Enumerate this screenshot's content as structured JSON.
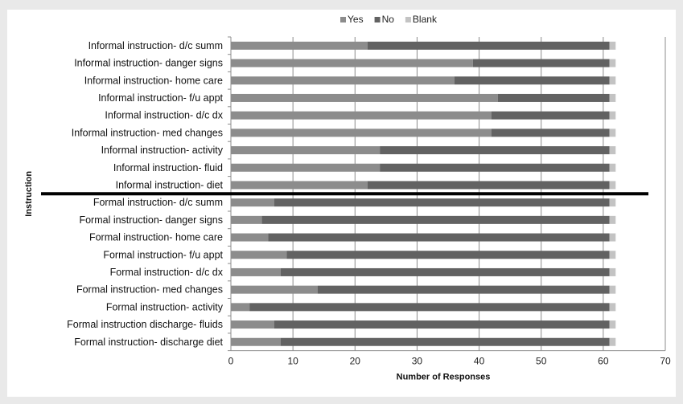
{
  "chart_data": {
    "type": "bar",
    "orientation": "horizontal",
    "stacked": true,
    "categories": [
      "Informal instruction- d/c summ",
      "Informal instruction- danger signs",
      "Informal instruction- home care",
      "Informal instruction- f/u appt",
      "Informal instruction- d/c dx",
      "Informal instruction- med changes",
      "Informal instruction- activity",
      "Informal instruction- fluid",
      "Informal instruction- diet",
      "Formal instruction- d/c summ",
      "Formal instruction- danger signs",
      "Formal instruction- home care",
      "Formal instruction- f/u appt",
      "Formal instruction- d/c dx",
      "Formal instruction- med changes",
      "Formal instruction- activity",
      "Formal instruction discharge- fluids",
      "Formal instruction- discharge diet"
    ],
    "series": [
      {
        "name": "Yes",
        "color": "#8c8c8c",
        "values": [
          22,
          39,
          36,
          43,
          42,
          42,
          24,
          24,
          22,
          7,
          5,
          6,
          9,
          8,
          14,
          3,
          7,
          8
        ]
      },
      {
        "name": "No",
        "color": "#626262",
        "values": [
          39,
          22,
          25,
          18,
          19,
          19,
          37,
          37,
          39,
          54,
          56,
          55,
          52,
          53,
          47,
          58,
          54,
          53
        ]
      },
      {
        "name": "Blank",
        "color": "#c3c3c3",
        "values": [
          1,
          1,
          1,
          1,
          1,
          1,
          1,
          1,
          1,
          1,
          1,
          1,
          1,
          1,
          1,
          1,
          1,
          1
        ]
      }
    ],
    "xlabel": "Number of Responses",
    "ylabel": "Instruction",
    "xlim": [
      0,
      70
    ],
    "xticks": [
      0,
      10,
      20,
      30,
      40,
      50,
      60,
      70
    ],
    "grid": true,
    "legend_position": "top-center",
    "separator_color": "#000000"
  }
}
